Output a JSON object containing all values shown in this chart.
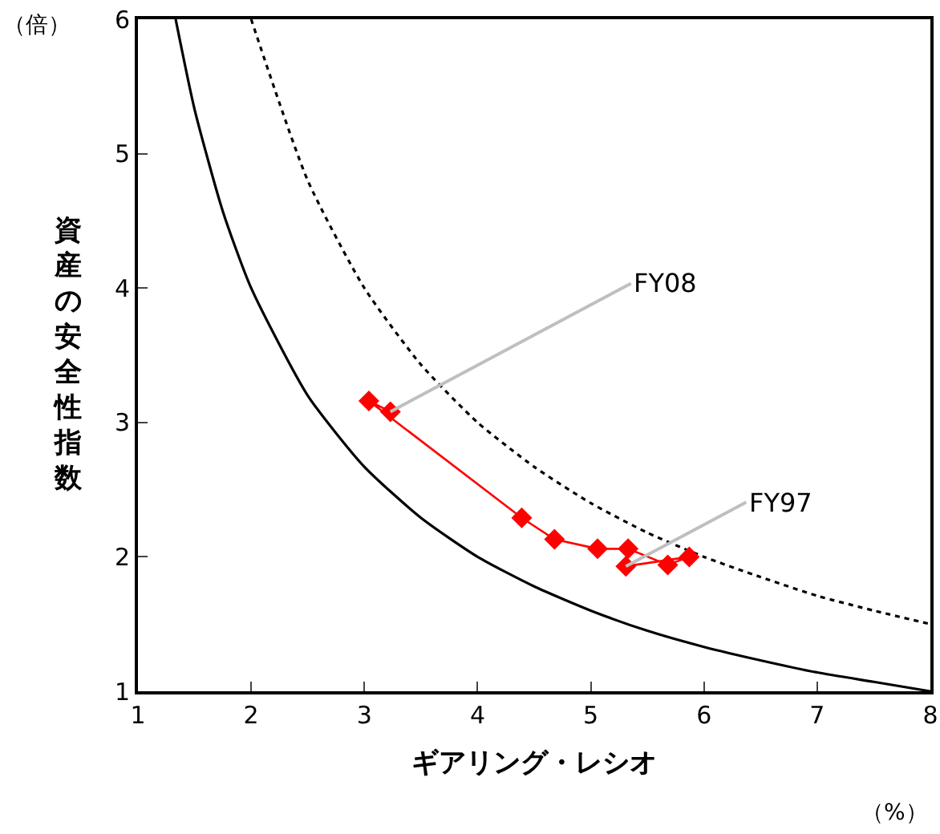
{
  "chart_data": {
    "type": "line",
    "xlabel": "ギアリング・レシオ",
    "ylabel": "資産の安全性指数",
    "xlim": [
      1,
      8
    ],
    "xticks": [
      1,
      2,
      3,
      4,
      5,
      6,
      7,
      8
    ],
    "ylim": [
      1,
      6
    ],
    "yticks": [
      1,
      2,
      3,
      4,
      5,
      6
    ],
    "series": [
      {
        "color": "#000000",
        "line_style": "solid",
        "marker": "none",
        "x": [
          1.333,
          1.5,
          1.75,
          2,
          2.5,
          3,
          3.5,
          4,
          4.5,
          5,
          5.5,
          6,
          6.5,
          7,
          7.5,
          8
        ],
        "values": [
          6,
          5.33,
          4.57,
          4,
          3.2,
          2.67,
          2.29,
          2,
          1.78,
          1.6,
          1.45,
          1.33,
          1.23,
          1.14,
          1.07,
          1
        ]
      },
      {
        "color": "#000000",
        "line_style": "dotted",
        "marker": "none",
        "x": [
          2,
          2.5,
          3,
          3.5,
          4,
          4.5,
          5,
          5.5,
          6,
          6.5,
          7,
          7.5,
          8
        ],
        "values": [
          6,
          4.8,
          4,
          3.43,
          3,
          2.67,
          2.4,
          2.18,
          2,
          1.85,
          1.71,
          1.6,
          1.5
        ]
      },
      {
        "color": "#ff0000",
        "line_style": "solid",
        "marker": "diamond",
        "x": [
          5.31,
          5.87,
          5.68,
          5.33,
          5.06,
          4.68,
          4.39,
          3.04,
          3.23
        ],
        "values": [
          1.93,
          2.0,
          1.94,
          2.06,
          2.06,
          2.13,
          2.29,
          3.16,
          3.08
        ]
      }
    ],
    "annotations": [
      {
        "text": "FY08",
        "x": 3.23,
        "y": 3.08
      },
      {
        "text": "FY97",
        "x": 5.31,
        "y": 1.93
      },
      "（倍）",
      "（%）"
    ]
  }
}
